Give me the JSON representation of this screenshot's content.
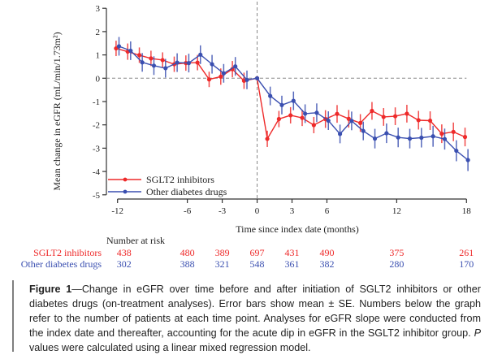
{
  "chart_data": {
    "type": "line",
    "title": "",
    "xlabel": "Time since index date (months)",
    "ylabel": "Mean change in eGFR (mL/min/1.73m²)",
    "xlim": [
      -12,
      18
    ],
    "ylim": [
      -5,
      3
    ],
    "x_ticks": [
      -12,
      -6,
      -3,
      0,
      3,
      6,
      12,
      18
    ],
    "y_ticks": [
      3,
      2,
      1,
      0,
      -1,
      -2,
      -3,
      -4,
      -5
    ],
    "grid": false,
    "reference_lines": {
      "horizontal_y": 0,
      "vertical_x": 0,
      "style": "dashed"
    },
    "legend": {
      "position": "bottom-left",
      "entries": [
        "SGLT2 inhibitors",
        "Other diabetes drugs"
      ]
    },
    "x": [
      -12,
      -11,
      -10,
      -9,
      -8,
      -7,
      -6,
      -5,
      -4,
      -3,
      -2,
      -1,
      0,
      1,
      2,
      3,
      4,
      5,
      6,
      7,
      8,
      9,
      10,
      11,
      12,
      13,
      14,
      15,
      16,
      17,
      18
    ],
    "series": [
      {
        "name": "SGLT2 inhibitors",
        "color": "#ee2a2a",
        "values": [
          1.28,
          1.14,
          0.99,
          0.85,
          0.78,
          0.6,
          0.65,
          0.67,
          -0.05,
          0.07,
          0.39,
          -0.11,
          0.0,
          -2.6,
          -1.75,
          -1.59,
          -1.7,
          -2.01,
          -1.75,
          -1.53,
          -1.74,
          -1.92,
          -1.4,
          -1.66,
          -1.63,
          -1.52,
          -1.8,
          -1.82,
          -2.38,
          -2.3,
          -2.52
        ],
        "se": [
          0.33,
          0.35,
          0.33,
          0.33,
          0.33,
          0.33,
          0.33,
          0.33,
          0.33,
          0.35,
          0.35,
          0.35,
          0.0,
          0.35,
          0.35,
          0.35,
          0.35,
          0.35,
          0.38,
          0.38,
          0.38,
          0.38,
          0.38,
          0.38,
          0.38,
          0.38,
          0.4,
          0.4,
          0.4,
          0.4,
          0.4
        ]
      },
      {
        "name": "Other diabetes drugs",
        "color": "#3a4fb0",
        "values": [
          1.37,
          1.18,
          0.68,
          0.54,
          0.43,
          0.67,
          0.65,
          1.01,
          0.6,
          0.21,
          0.51,
          -0.07,
          0.0,
          -0.76,
          -1.15,
          -0.97,
          -1.52,
          -1.48,
          -1.82,
          -2.39,
          -1.83,
          -2.26,
          -2.59,
          -2.36,
          -2.54,
          -2.59,
          -2.55,
          -2.49,
          -2.61,
          -3.11,
          -3.51
        ],
        "se": [
          0.4,
          0.4,
          0.4,
          0.4,
          0.4,
          0.4,
          0.4,
          0.4,
          0.4,
          0.4,
          0.4,
          0.4,
          0.0,
          0.4,
          0.4,
          0.4,
          0.4,
          0.4,
          0.4,
          0.4,
          0.4,
          0.4,
          0.42,
          0.42,
          0.42,
          0.42,
          0.42,
          0.45,
          0.45,
          0.45,
          0.47
        ]
      }
    ]
  },
  "risk_table": {
    "title": "Number at risk",
    "months": [
      -12,
      -6,
      -3,
      0,
      3,
      6,
      12,
      18
    ],
    "rows": [
      {
        "label": "SGLT2 inhibitors",
        "color": "#ee2a2a",
        "values": [
          "438",
          "480",
          "389",
          "697",
          "431",
          "490",
          "375",
          "261"
        ]
      },
      {
        "label": "Other diabetes drugs",
        "color": "#3a4fb0",
        "values": [
          "302",
          "388",
          "321",
          "548",
          "361",
          "382",
          "280",
          "170"
        ]
      }
    ]
  },
  "caption": {
    "label": "Figure 1",
    "dash": "—",
    "text_1": "Change in eGFR over time before and after initiation of SGLT2 inhibitors or other diabetes drugs (on-treatment analyses). Error bars show mean ± SE. Numbers below the graph refer to the number of patients at each time point. Analyses for eGFR slope were conducted from the index date and thereafter, accounting for the acute dip in eGFR in the SGLT2 inhibitor group. ",
    "italic": "P",
    "text_2": " values were calculated using a linear mixed regression model."
  }
}
